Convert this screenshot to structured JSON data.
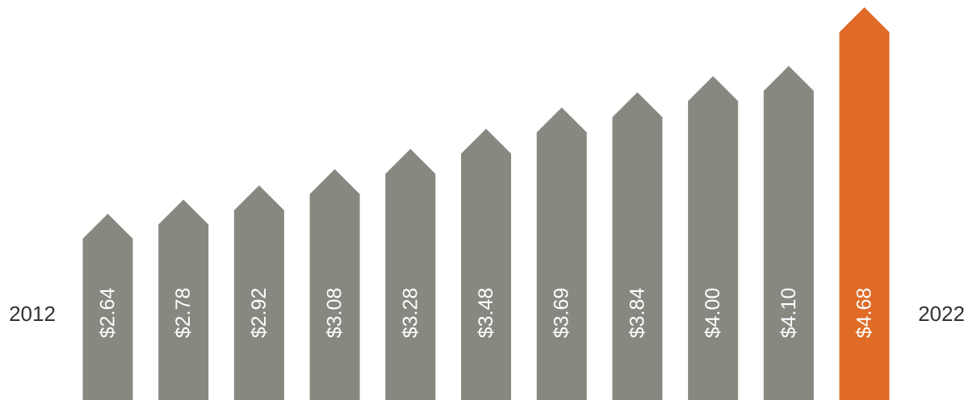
{
  "chart_data": {
    "type": "bar",
    "start_label": "2012",
    "end_label": "2022",
    "values": [
      2.64,
      2.78,
      2.92,
      3.08,
      3.28,
      3.48,
      3.69,
      3.84,
      4.0,
      4.1,
      4.68
    ],
    "value_labels": [
      "$2.64",
      "$2.78",
      "$2.92",
      "$3.08",
      "$3.28",
      "$3.48",
      "$3.69",
      "$3.84",
      "$4.00",
      "$4.10",
      "$4.68"
    ],
    "highlight_index": 10,
    "colors": {
      "bar": "#878880",
      "highlight": "#df6b27",
      "label_text": "#ffffff",
      "year_text": "#333333"
    }
  }
}
